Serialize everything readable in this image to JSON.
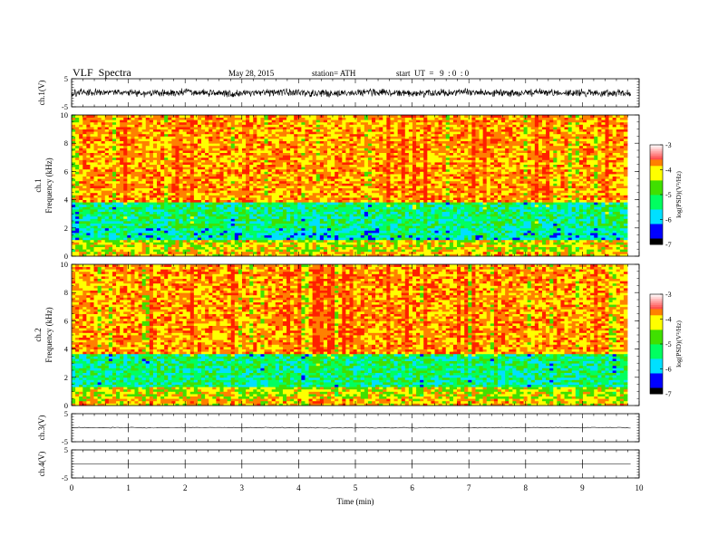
{
  "header": {
    "title": "VLF  Spectra",
    "date": "May 28, 2015",
    "station": "station= ATH",
    "start": "start  UT  =   9  : 0  : 0"
  },
  "colors": {
    "spectrogram_scale": [
      "#000000",
      "#0000ff",
      "#00e0ff",
      "#00ff60",
      "#40e000",
      "#ffff00",
      "#ff8000",
      "#ff2000",
      "#ffffff"
    ],
    "trace": "#000000"
  },
  "chart_data": [
    {
      "id": "ch1_waveform",
      "type": "line",
      "ylabel": "ch.1(V)",
      "ylim": [
        -5,
        5
      ],
      "yticks": [
        "5",
        "-5"
      ],
      "description_values": {
        "baseline": 0,
        "envelope": [
          -1.5,
          1.6
        ]
      },
      "x_range": [
        0,
        9.85
      ]
    },
    {
      "id": "ch1_spectrogram",
      "type": "heatmap",
      "ylabel": [
        "ch.1",
        "Frequency  (kHz)"
      ],
      "ylim": [
        0,
        10
      ],
      "yticks": [
        "0",
        "2",
        "4",
        "6",
        "8",
        "10"
      ],
      "x_range": [
        0,
        9.85
      ],
      "bands": [
        {
          "from": 0,
          "to": 0.4,
          "level": -3.9
        },
        {
          "from": 0.4,
          "to": 1.2,
          "level": -4.2
        },
        {
          "from": 1.2,
          "to": 2.0,
          "level": -5.6
        },
        {
          "from": 2.0,
          "to": 3.8,
          "level": -5.3
        },
        {
          "from": 3.8,
          "to": 10,
          "level": -3.7
        }
      ],
      "colorbar": {
        "label": "log(PSD)(V²/Hz)",
        "range": [
          -7,
          -3
        ],
        "ticks": [
          "-3",
          "-4",
          "-5",
          "-6",
          "-7"
        ]
      }
    },
    {
      "id": "ch2_spectrogram",
      "type": "heatmap",
      "ylabel": [
        "ch.2",
        "Frequency  (kHz)"
      ],
      "ylim": [
        0,
        10
      ],
      "yticks": [
        "0",
        "2",
        "4",
        "6",
        "8",
        "10"
      ],
      "x_range": [
        0,
        9.85
      ],
      "bands": [
        {
          "from": 0,
          "to": 0.5,
          "level": -3.9
        },
        {
          "from": 0.5,
          "to": 1.4,
          "level": -4.3
        },
        {
          "from": 1.4,
          "to": 2.2,
          "level": -5.4
        },
        {
          "from": 2.2,
          "to": 3.6,
          "level": -5.3
        },
        {
          "from": 3.6,
          "to": 10,
          "level": -3.7
        }
      ],
      "colorbar": {
        "label": "log(PSD)(V²/Hz)",
        "range": [
          -7,
          -3
        ],
        "ticks": [
          "-3",
          "-4",
          "-5",
          "-6",
          "-7"
        ]
      }
    },
    {
      "id": "ch3_waveform",
      "type": "line",
      "ylabel": "ch.3(V)",
      "ylim": [
        -5,
        5
      ],
      "yticks": [
        "5",
        "-5"
      ],
      "description_values": {
        "baseline": 0,
        "envelope": [
          -0.2,
          0.2
        ]
      },
      "x_range": [
        0,
        9.85
      ]
    },
    {
      "id": "ch4_waveform",
      "type": "line",
      "ylabel": "ch.4(V)",
      "ylim": [
        -5,
        5
      ],
      "yticks": [
        "5",
        "-5"
      ],
      "description_values": {
        "baseline": 0,
        "envelope": [
          0,
          0
        ]
      },
      "x_range": [
        0,
        9.85
      ]
    }
  ],
  "xaxis": {
    "label": "Time  (min)",
    "range": [
      0,
      10
    ],
    "ticks": [
      "0",
      "1",
      "2",
      "3",
      "4",
      "5",
      "6",
      "7",
      "8",
      "9",
      "10"
    ]
  }
}
